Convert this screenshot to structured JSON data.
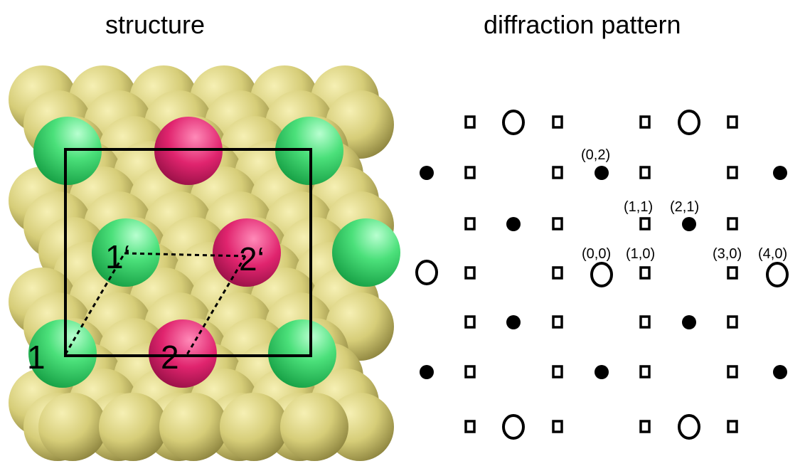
{
  "titles": {
    "structure": "structure",
    "diffraction": "diffraction pattern"
  },
  "structure": {
    "labels": {
      "site_1": "1",
      "site_2": "2",
      "site_1p": "1‘",
      "site_2p": "2‘"
    },
    "colors": {
      "substrate": "#d8cf7a",
      "green": "#4ee07a",
      "magenta": "#e8307a",
      "outline": "#000000"
    }
  },
  "diffraction": {
    "labels": {
      "l02": "(0,2)",
      "l11": "(1,1)",
      "l21": "(2,1)",
      "l00": "(0,0)",
      "l10": "(1,0)",
      "l30": "(3,0)",
      "l40": "(4,0)"
    },
    "spot_types": [
      "open-circle",
      "filled-circle",
      "open-square"
    ]
  }
}
